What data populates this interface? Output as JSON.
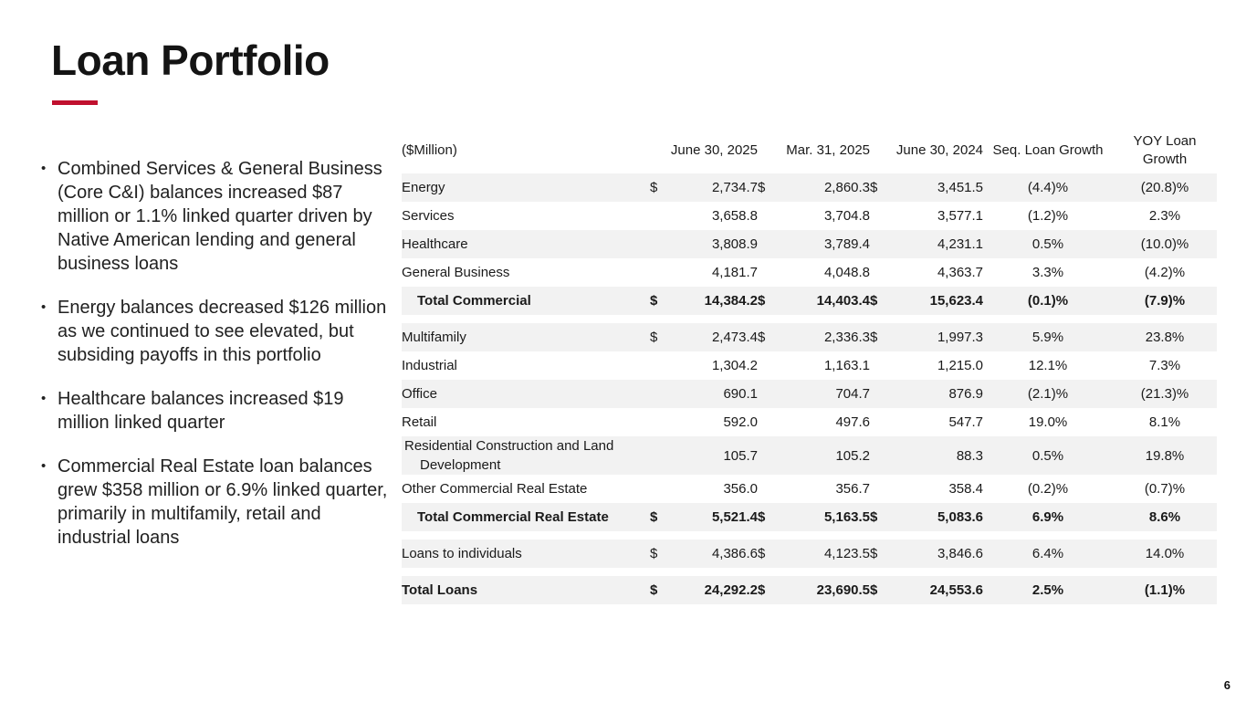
{
  "slide": {
    "title": "Loan Portfolio",
    "page_number": "6",
    "accent_color": "#C0102E",
    "stripe_color": "#F2F2F2",
    "bullet_marker": "•"
  },
  "bullets": [
    "Combined Services & General Business (Core C&I) balances increased $87 million or 1.1% linked quarter driven by Native American lending and general business loans",
    "Energy balances decreased $126 million as we continued to see elevated, but subsiding payoffs in this portfolio",
    "Healthcare balances increased $19 million linked quarter",
    "Commercial Real Estate loan balances grew $358 million or 6.9% linked quarter, primarily in multifamily, retail and industrial loans"
  ],
  "table": {
    "unit_label": "($Million)",
    "columns": [
      "June 30, 2025",
      "Mar. 31, 2025",
      "June 30, 2024",
      "Seq. Loan Growth",
      "YOY Loan Growth"
    ],
    "rows": [
      {
        "label": "Energy",
        "d1": "$",
        "v1": "2,734.7",
        "d2": "$",
        "v2": "2,860.3",
        "d3": "$",
        "v3": "3,451.5",
        "g1": "(4.4)%",
        "g2": "(20.8)%",
        "shaded": true,
        "bold": false,
        "indent": false,
        "hang": false,
        "gap_before": false
      },
      {
        "label": "Services",
        "d1": "",
        "v1": "3,658.8",
        "d2": "",
        "v2": "3,704.8",
        "d3": "",
        "v3": "3,577.1",
        "g1": "(1.2)%",
        "g2": "2.3%",
        "shaded": false,
        "bold": false,
        "indent": false,
        "hang": false,
        "gap_before": false
      },
      {
        "label": "Healthcare",
        "d1": "",
        "v1": "3,808.9",
        "d2": "",
        "v2": "3,789.4",
        "d3": "",
        "v3": "4,231.1",
        "g1": "0.5%",
        "g2": "(10.0)%",
        "shaded": true,
        "bold": false,
        "indent": false,
        "hang": false,
        "gap_before": false
      },
      {
        "label": "General Business",
        "d1": "",
        "v1": "4,181.7",
        "d2": "",
        "v2": "4,048.8",
        "d3": "",
        "v3": "4,363.7",
        "g1": "3.3%",
        "g2": "(4.2)%",
        "shaded": false,
        "bold": false,
        "indent": false,
        "hang": false,
        "gap_before": false
      },
      {
        "label": "Total Commercial",
        "d1": "$",
        "v1": "14,384.2",
        "d2": "$",
        "v2": "14,403.4",
        "d3": "$",
        "v3": "15,623.4",
        "g1": "(0.1)%",
        "g2": "(7.9)%",
        "shaded": true,
        "bold": true,
        "indent": true,
        "hang": false,
        "gap_before": false
      },
      {
        "label": "Multifamily",
        "d1": "$",
        "v1": "2,473.4",
        "d2": "$",
        "v2": "2,336.3",
        "d3": "$",
        "v3": "1,997.3",
        "g1": "5.9%",
        "g2": "23.8%",
        "shaded": true,
        "bold": false,
        "indent": false,
        "hang": false,
        "gap_before": true
      },
      {
        "label": "Industrial",
        "d1": "",
        "v1": "1,304.2",
        "d2": "",
        "v2": "1,163.1",
        "d3": "",
        "v3": "1,215.0",
        "g1": "12.1%",
        "g2": "7.3%",
        "shaded": false,
        "bold": false,
        "indent": false,
        "hang": false,
        "gap_before": false
      },
      {
        "label": "Office",
        "d1": "",
        "v1": "690.1",
        "d2": "",
        "v2": "704.7",
        "d3": "",
        "v3": "876.9",
        "g1": "(2.1)%",
        "g2": "(21.3)%",
        "shaded": true,
        "bold": false,
        "indent": false,
        "hang": false,
        "gap_before": false
      },
      {
        "label": "Retail",
        "d1": "",
        "v1": "592.0",
        "d2": "",
        "v2": "497.6",
        "d3": "",
        "v3": "547.7",
        "g1": "19.0%",
        "g2": "8.1%",
        "shaded": false,
        "bold": false,
        "indent": false,
        "hang": false,
        "gap_before": false
      },
      {
        "label": "Residential Construction and Land Development",
        "d1": "",
        "v1": "105.7",
        "d2": "",
        "v2": "105.2",
        "d3": "",
        "v3": "88.3",
        "g1": "0.5%",
        "g2": "19.8%",
        "shaded": true,
        "bold": false,
        "indent": false,
        "hang": true,
        "gap_before": false
      },
      {
        "label": "Other Commercial Real Estate",
        "d1": "",
        "v1": "356.0",
        "d2": "",
        "v2": "356.7",
        "d3": "",
        "v3": "358.4",
        "g1": "(0.2)%",
        "g2": "(0.7)%",
        "shaded": false,
        "bold": false,
        "indent": false,
        "hang": false,
        "gap_before": false
      },
      {
        "label": "Total Commercial Real Estate",
        "d1": "$",
        "v1": "5,521.4",
        "d2": "$",
        "v2": "5,163.5",
        "d3": "$",
        "v3": "5,083.6",
        "g1": "6.9%",
        "g2": "8.6%",
        "shaded": true,
        "bold": true,
        "indent": true,
        "hang": false,
        "gap_before": false
      },
      {
        "label": "Loans to individuals",
        "d1": "$",
        "v1": "4,386.6",
        "d2": "$",
        "v2": "4,123.5",
        "d3": "$",
        "v3": "3,846.6",
        "g1": "6.4%",
        "g2": "14.0%",
        "shaded": true,
        "bold": false,
        "indent": false,
        "hang": false,
        "gap_before": true
      },
      {
        "label": "Total Loans",
        "d1": "$",
        "v1": "24,292.2",
        "d2": "$",
        "v2": "23,690.5",
        "d3": "$",
        "v3": "24,553.6",
        "g1": "2.5%",
        "g2": "(1.1)%",
        "shaded": true,
        "bold": true,
        "indent": false,
        "hang": false,
        "gap_before": true
      }
    ]
  }
}
